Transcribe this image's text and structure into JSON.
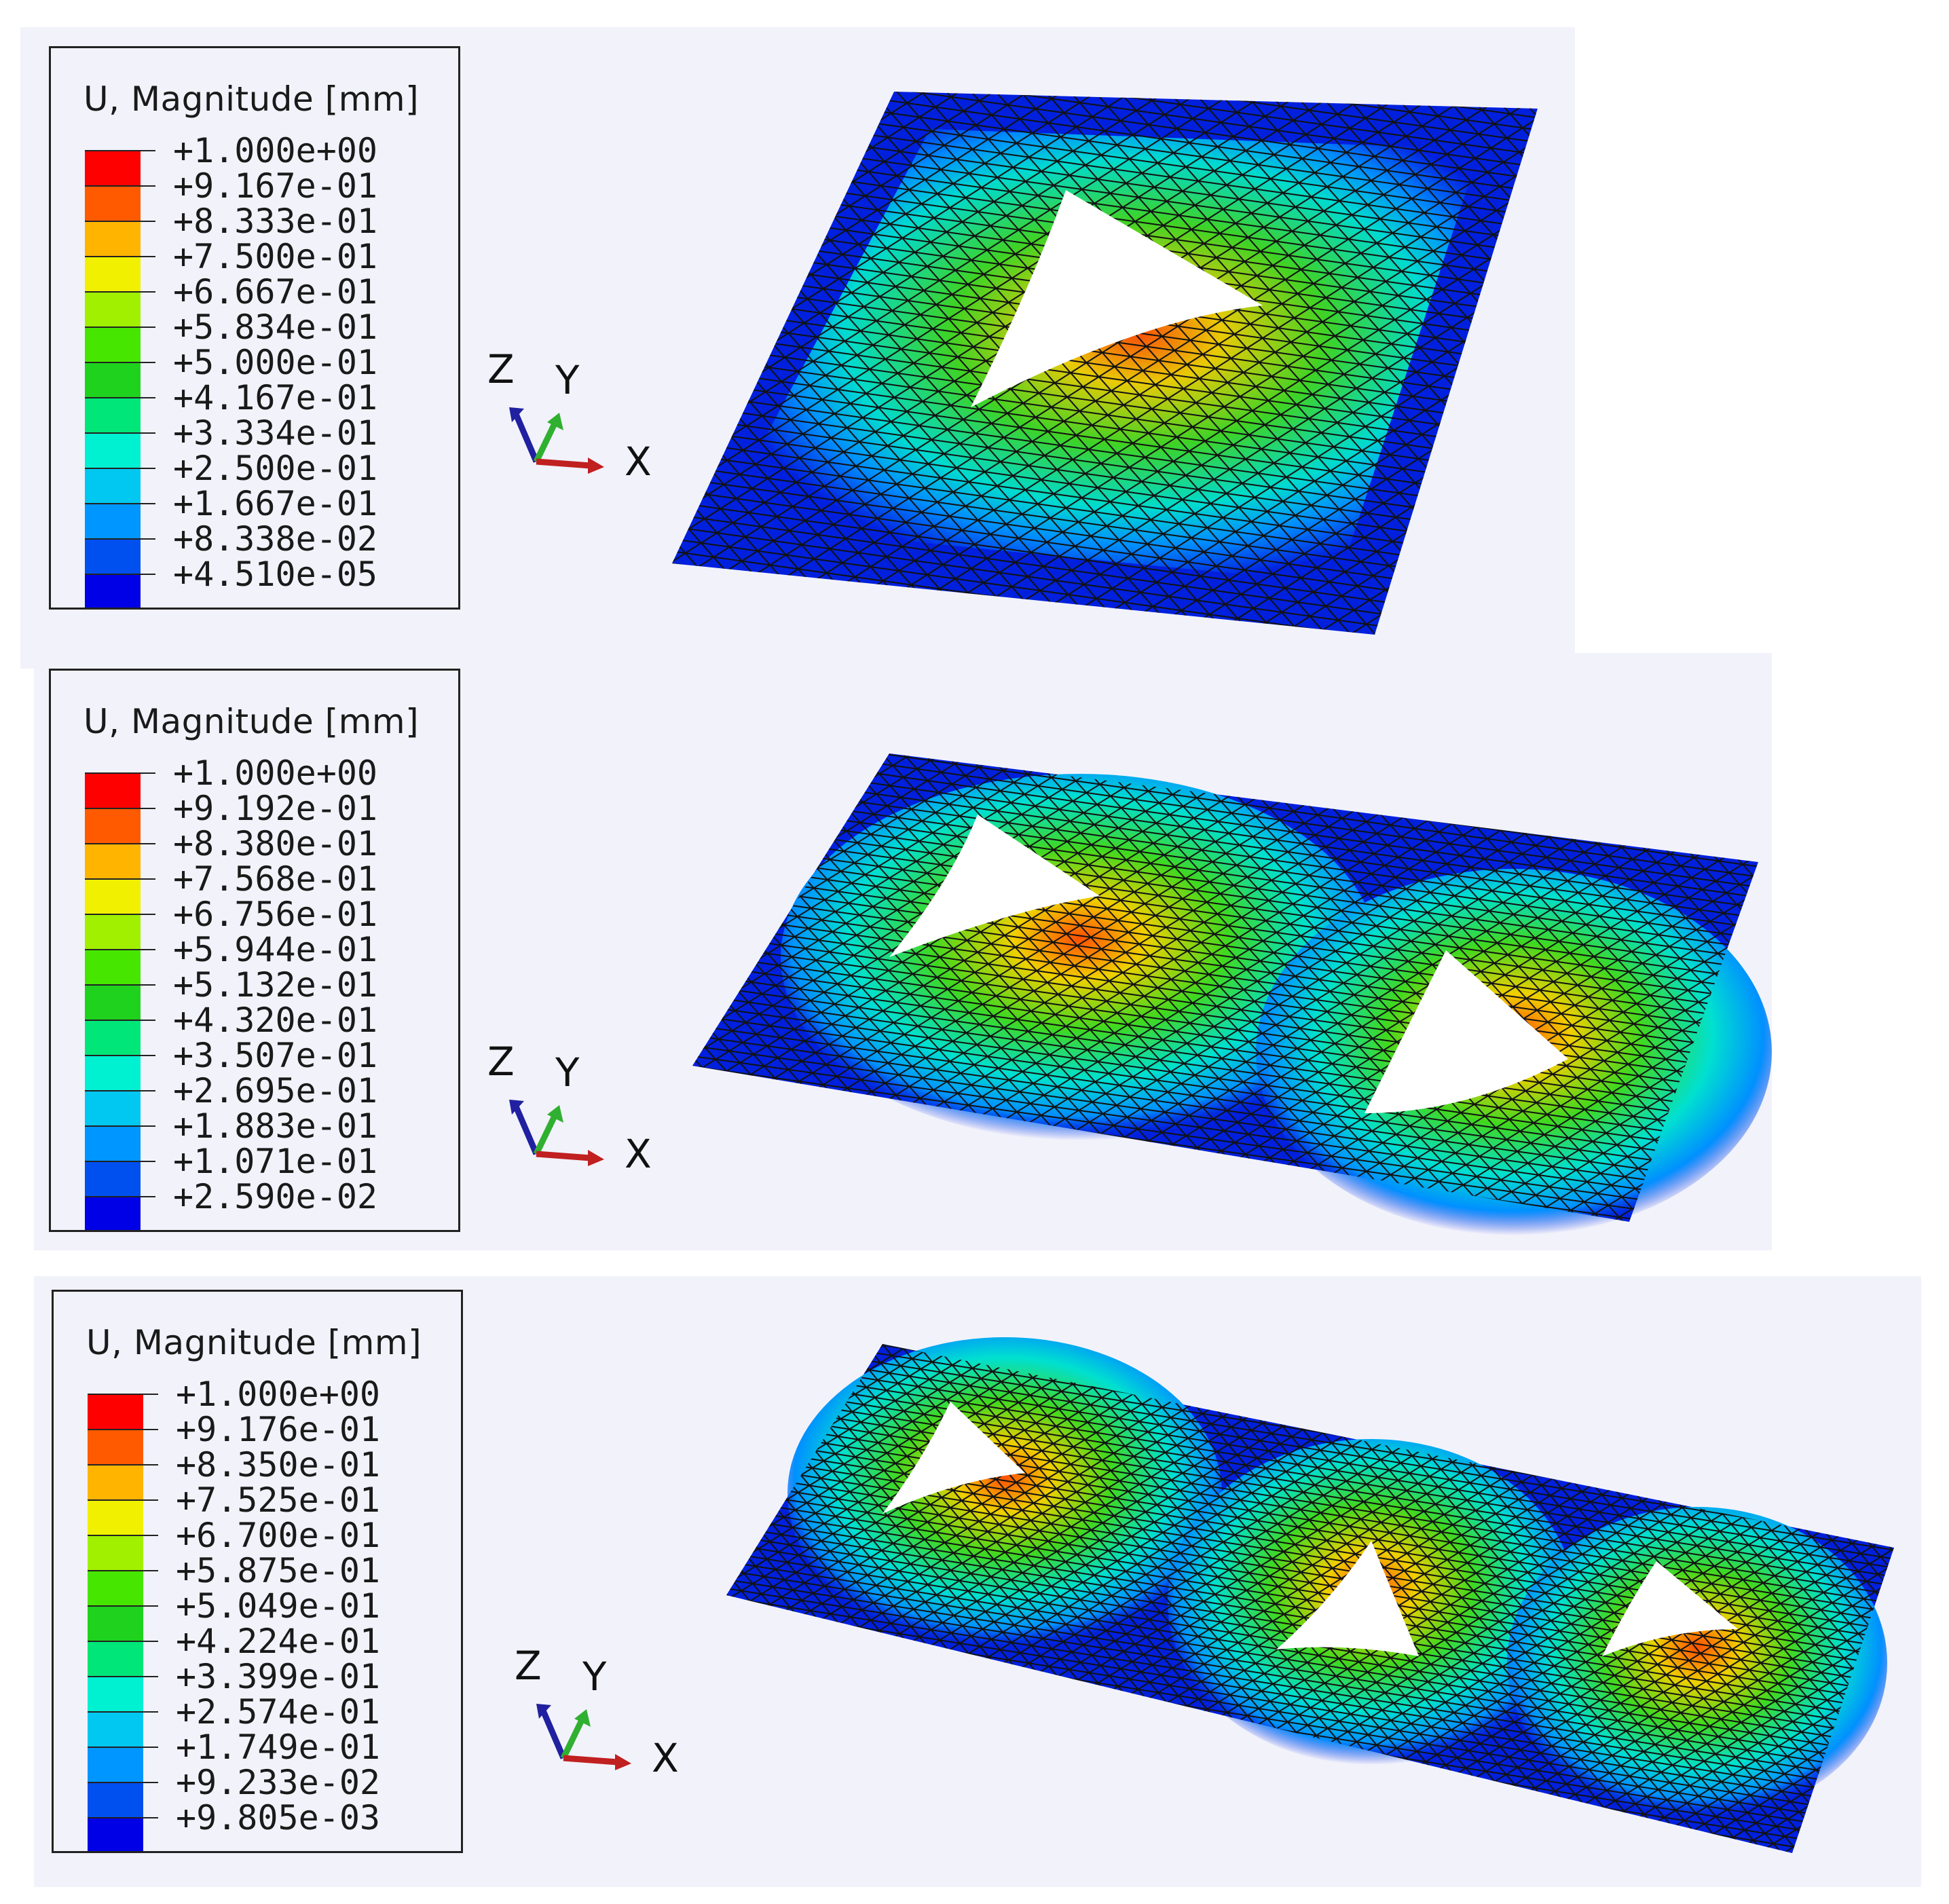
{
  "panels": [
    {
      "legend": {
        "title": "U, Magnitude [mm]",
        "values": [
          "+1.000e+00",
          "+9.167e-01",
          "+8.333e-01",
          "+7.500e-01",
          "+6.667e-01",
          "+5.834e-01",
          "+5.000e-01",
          "+4.167e-01",
          "+3.334e-01",
          "+2.500e-01",
          "+1.667e-01",
          "+8.338e-02",
          "+4.510e-05"
        ]
      },
      "triad": {
        "z": "Z",
        "y": "Y",
        "x": "X"
      }
    },
    {
      "legend": {
        "title": "U, Magnitude [mm]",
        "values": [
          "+1.000e+00",
          "+9.192e-01",
          "+8.380e-01",
          "+7.568e-01",
          "+6.756e-01",
          "+5.944e-01",
          "+5.132e-01",
          "+4.320e-01",
          "+3.507e-01",
          "+2.695e-01",
          "+1.883e-01",
          "+1.071e-01",
          "+2.590e-02"
        ]
      },
      "triad": {
        "z": "Z",
        "y": "Y",
        "x": "X"
      }
    },
    {
      "legend": {
        "title": "U, Magnitude [mm]",
        "values": [
          "+1.000e+00",
          "+9.176e-01",
          "+8.350e-01",
          "+7.525e-01",
          "+6.700e-01",
          "+5.875e-01",
          "+5.049e-01",
          "+4.224e-01",
          "+3.399e-01",
          "+2.574e-01",
          "+1.749e-01",
          "+9.233e-02",
          "+9.805e-03"
        ]
      },
      "triad": {
        "z": "Z",
        "y": "Y",
        "x": "X"
      }
    }
  ],
  "colormap": [
    "#ff0000",
    "#ff5a00",
    "#ffb400",
    "#f0f000",
    "#a0f000",
    "#46e600",
    "#1ed21e",
    "#00e678",
    "#00f0d2",
    "#00c8f0",
    "#0096ff",
    "#0050f0",
    "#0000e6"
  ]
}
